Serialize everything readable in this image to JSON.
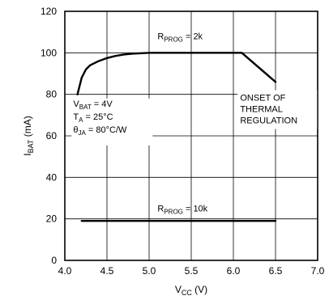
{
  "chart_data": {
    "type": "line",
    "xlabel": {
      "main": "V",
      "sub": "CC",
      "unit": " (V)"
    },
    "ylabel": {
      "main": "I",
      "sub": "BAT",
      "unit": " (mA)"
    },
    "xlim": [
      4.0,
      7.0
    ],
    "ylim": [
      0,
      120
    ],
    "x_ticks": [
      4.0,
      4.5,
      5.0,
      5.5,
      6.0,
      6.5,
      7.0
    ],
    "x_tick_labels": [
      "4.0",
      "4.5",
      "5.0",
      "5.5",
      "6.0",
      "6.5",
      "7.0"
    ],
    "y_ticks": [
      0,
      20,
      40,
      60,
      80,
      100,
      120
    ],
    "y_tick_labels": [
      "0",
      "20",
      "40",
      "60",
      "80",
      "100",
      "120"
    ],
    "grid": true,
    "series": [
      {
        "name": "RPROG = 2k",
        "label": {
          "main": "R",
          "sub": "PROG",
          "rest": " = 2k"
        },
        "x": [
          4.15,
          4.2,
          4.25,
          4.3,
          4.4,
          4.5,
          4.6,
          4.7,
          4.8,
          5.0,
          5.5,
          6.0,
          6.1,
          6.5
        ],
        "y": [
          80,
          88,
          92,
          94,
          96,
          97.5,
          98.5,
          99.2,
          99.6,
          100,
          100,
          100,
          100,
          86
        ]
      },
      {
        "name": "RPROG = 10k",
        "label": {
          "main": "R",
          "sub": "PROG",
          "rest": " = 10k"
        },
        "x": [
          4.2,
          6.5
        ],
        "y": [
          19,
          19
        ]
      }
    ],
    "conditions": [
      {
        "main": "V",
        "sub": "BAT",
        "rest": " = 4V"
      },
      {
        "main": "T",
        "sub": "A",
        "rest": " = 25°C"
      },
      {
        "main": "θ",
        "sub": "JA",
        "rest": " = 80°C/W"
      }
    ],
    "annotation": [
      "ONSET OF",
      "THERMAL",
      "REGULATION"
    ]
  }
}
